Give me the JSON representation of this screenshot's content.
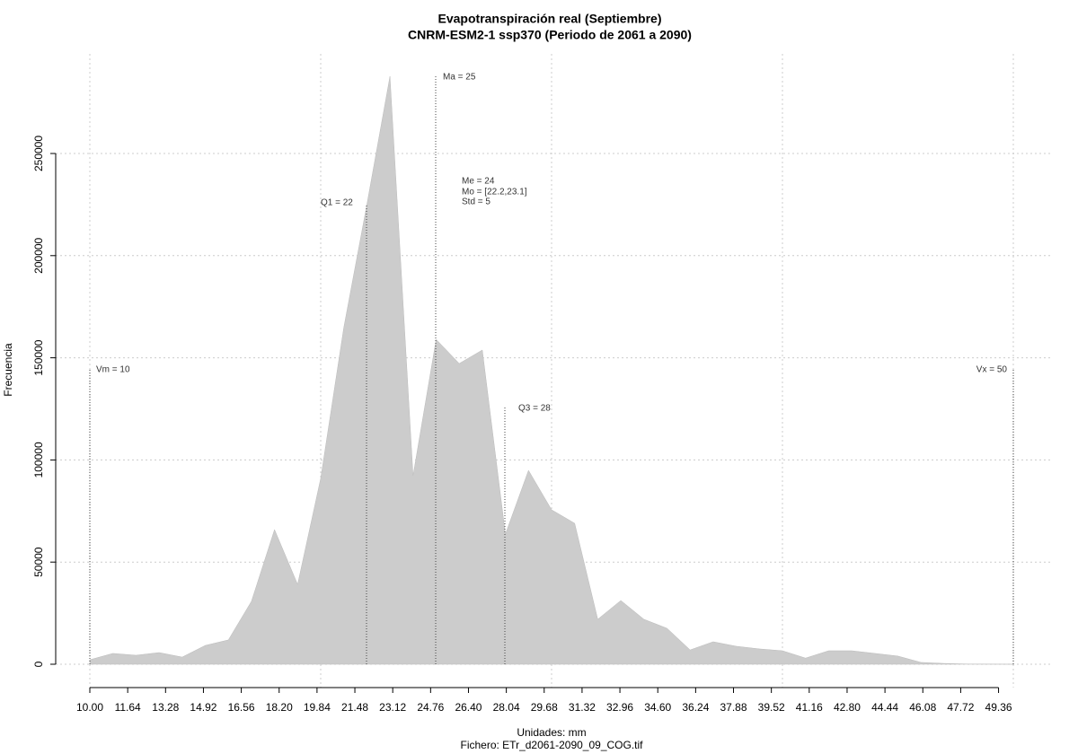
{
  "chart_data": {
    "type": "area",
    "title": "Evapotranspiración real (Septiembre)",
    "subtitle": "CNRM-ESM2-1 ssp370 (Periodo de 2061 a 2090)",
    "x_label": "Unidades: mm",
    "caption": "Fichero: ETr_d2061-2090_09_COG.tif",
    "y_label": "Frecuencia",
    "x": [
      10,
      11,
      12,
      13,
      14,
      15,
      16,
      17,
      18,
      19,
      20,
      21,
      22,
      23,
      24,
      25,
      26,
      27,
      28,
      29,
      30,
      31,
      32,
      33,
      34,
      35,
      36,
      37,
      38,
      39,
      40,
      41,
      42,
      43,
      44,
      45,
      46,
      47,
      48,
      49,
      50
    ],
    "values": [
      2200,
      5300,
      4400,
      5700,
      3500,
      9200,
      11900,
      30800,
      65900,
      39100,
      91000,
      164800,
      225000,
      287800,
      92300,
      159000,
      147200,
      153800,
      63700,
      94900,
      75600,
      69000,
      22000,
      31200,
      22000,
      17600,
      7000,
      11000,
      8800,
      7500,
      6600,
      3000,
      6600,
      6600,
      5300,
      4000,
      900,
      400,
      100,
      50,
      0
    ],
    "color": "#cccccc",
    "xlim": [
      10,
      50
    ],
    "ylim": [
      0,
      250000
    ],
    "xticks": [
      {
        "value": 10,
        "label": "10.00"
      },
      11.64,
      13.28,
      14.92,
      16.56,
      {
        "value": 18.2,
        "label": "18.20"
      },
      19.84,
      21.48,
      23.12,
      24.76,
      {
        "value": 26.4,
        "label": "26.40"
      },
      28.04,
      29.68,
      31.32,
      32.96,
      {
        "value": 34.6,
        "label": "34.60"
      },
      36.24,
      37.88,
      39.52,
      41.16,
      {
        "value": 42.8,
        "label": "42.80"
      },
      44.44,
      46.08,
      47.72,
      49.36
    ],
    "yticks": [
      0,
      50000,
      100000,
      150000,
      200000,
      250000
    ],
    "xgrid": [
      10,
      20,
      30,
      40,
      50
    ],
    "grid": true,
    "annotations": [
      "Vm = 10",
      "Q1 = 22",
      "Ma = 25",
      "Me = 24",
      "Mo = [22.2,23.1]",
      "Std = 5",
      "Q3 = 28",
      "Vx = 50"
    ]
  }
}
